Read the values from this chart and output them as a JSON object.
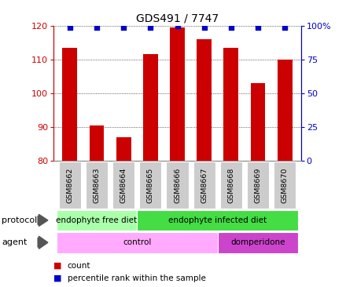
{
  "title": "GDS491 / 7747",
  "samples": [
    "GSM8662",
    "GSM8663",
    "GSM8664",
    "GSM8665",
    "GSM8666",
    "GSM8667",
    "GSM8668",
    "GSM8669",
    "GSM8670"
  ],
  "counts": [
    113.5,
    90.5,
    87.0,
    111.5,
    119.5,
    116.0,
    113.5,
    103.0,
    110.0
  ],
  "percentiles": [
    99,
    99,
    99,
    99,
    100,
    99,
    99,
    99,
    99
  ],
  "ylim_left": [
    80,
    120
  ],
  "ylim_right": [
    0,
    100
  ],
  "yticks_left": [
    80,
    90,
    100,
    110,
    120
  ],
  "yticks_right": [
    0,
    25,
    50,
    75,
    100
  ],
  "yticklabels_right": [
    "0",
    "25",
    "50",
    "75",
    "100%"
  ],
  "bar_color": "#cc0000",
  "dot_color": "#0000cc",
  "protocol_labels": [
    "endophyte free diet",
    "endophyte infected diet"
  ],
  "protocol_colors": [
    "#aaffaa",
    "#44dd44"
  ],
  "agent_labels": [
    "control",
    "domperidone"
  ],
  "agent_colors": [
    "#ffaaff",
    "#cc44cc"
  ],
  "protocol_row_label": "protocol",
  "agent_row_label": "agent",
  "legend_count": "count",
  "legend_pct": "percentile rank within the sample",
  "xtick_bg_color": "#cccccc",
  "border_color": "#888888"
}
